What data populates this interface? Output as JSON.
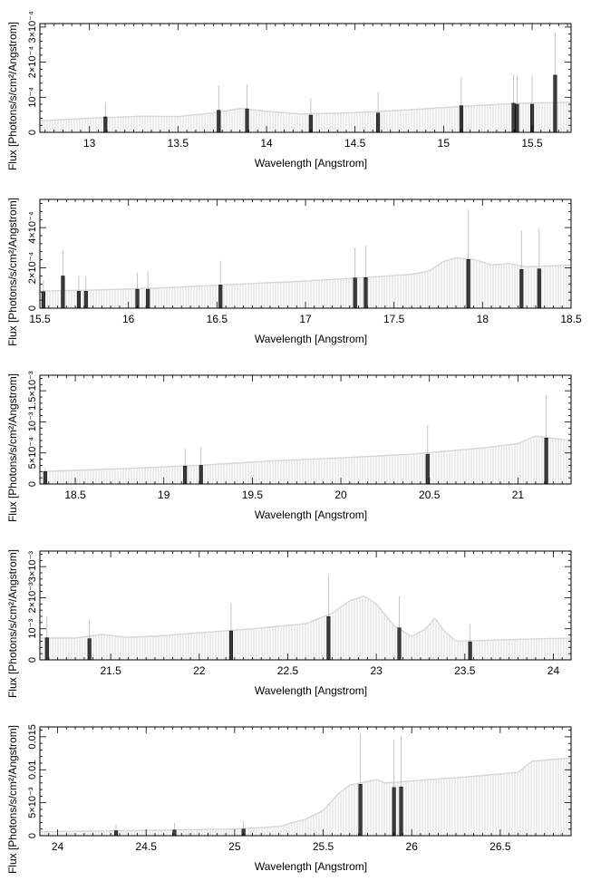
{
  "chart_data": [
    {
      "type": "bar",
      "xlabel": "Wavelength [Angstrom]",
      "ylabel": "Flux [Photons/s/cm²/Angstrom]",
      "xlim": [
        12.72,
        15.72
      ],
      "ylim": [
        0,
        0.00031
      ],
      "xticks": [
        13,
        13.5,
        14,
        14.5,
        15,
        15.5
      ],
      "xtick_labels": [
        "13",
        "13.5",
        "14",
        "14.5",
        "15",
        "15.5"
      ],
      "yticks": [
        0,
        0.0001,
        0.0002,
        0.0003
      ],
      "ytick_labels": [
        "0",
        "10⁻⁴",
        "2×10⁻⁴",
        "3×10⁻⁴"
      ],
      "continuum": {
        "x": [
          12.72,
          13.0,
          13.3,
          13.5,
          13.7,
          13.85,
          14.0,
          14.2,
          14.5,
          14.8,
          15.1,
          15.4,
          15.72
        ],
        "y": [
          3.3e-05,
          4e-05,
          4.6e-05,
          4.5e-05,
          5.5e-05,
          6.8e-05,
          6e-05,
          5.2e-05,
          5.6e-05,
          6.4e-05,
          7.4e-05,
          8.2e-05,
          8.6e-05
        ]
      },
      "lines": [
        {
          "x": 13.09,
          "y": 4.4e-05,
          "err_hi": 8.5e-05
        },
        {
          "x": 13.73,
          "y": 6.3e-05,
          "err_hi": 0.000134
        },
        {
          "x": 13.89,
          "y": 6.7e-05,
          "err_hi": 0.000137
        },
        {
          "x": 14.25,
          "y": 4.9e-05,
          "err_hi": 9.7e-05
        },
        {
          "x": 14.63,
          "y": 5.5e-05,
          "err_hi": 0.000115
        },
        {
          "x": 15.1,
          "y": 7.6e-05,
          "err_hi": 0.000158
        },
        {
          "x": 15.395,
          "y": 8.3e-05,
          "err_hi": 0.000165
        },
        {
          "x": 15.415,
          "y": 8e-05,
          "err_hi": 0.000162
        },
        {
          "x": 15.5,
          "y": 8e-05,
          "err_hi": 0.000162
        },
        {
          "x": 15.63,
          "y": 0.000163,
          "err_hi": 0.000285
        }
      ]
    },
    {
      "type": "bar",
      "xlabel": "Wavelength [Angstrom]",
      "ylabel": "Flux [Photons/s/cm²/Angstrom]",
      "xlim": [
        15.5,
        18.5
      ],
      "ylim": [
        0,
        0.00054
      ],
      "xticks": [
        15.5,
        16,
        16.5,
        17,
        17.5,
        18,
        18.5
      ],
      "xtick_labels": [
        "15.5",
        "16",
        "16.5",
        "17",
        "17.5",
        "18",
        "18.5"
      ],
      "yticks": [
        0,
        0.0002,
        0.0004
      ],
      "ytick_labels": [
        "0",
        "2×10⁻⁴",
        "4×10⁻⁴"
      ],
      "continuum": {
        "x": [
          15.5,
          15.8,
          16.0,
          16.3,
          16.6,
          17.0,
          17.3,
          17.6,
          17.7,
          17.78,
          17.85,
          17.95,
          18.05,
          18.15,
          18.25,
          18.5
        ],
        "y": [
          8.5e-05,
          9e-05,
          9.5e-05,
          0.000105,
          0.000118,
          0.000135,
          0.00015,
          0.000168,
          0.000185,
          0.000232,
          0.00025,
          0.000242,
          0.000215,
          0.000222,
          0.000205,
          0.000215
        ]
      },
      "lines": [
        {
          "x": 15.52,
          "y": 8.2e-05,
          "err_hi": 0.000135
        },
        {
          "x": 15.63,
          "y": 0.00016,
          "err_hi": 0.000285
        },
        {
          "x": 15.72,
          "y": 8.4e-05,
          "err_hi": 0.00016
        },
        {
          "x": 15.76,
          "y": 8.4e-05,
          "err_hi": 0.00016
        },
        {
          "x": 16.05,
          "y": 9.4e-05,
          "err_hi": 0.000177
        },
        {
          "x": 16.11,
          "y": 9.4e-05,
          "err_hi": 0.000184
        },
        {
          "x": 16.52,
          "y": 0.000115,
          "err_hi": 0.000235
        },
        {
          "x": 17.28,
          "y": 0.00015,
          "err_hi": 0.0003
        },
        {
          "x": 17.34,
          "y": 0.000152,
          "err_hi": 0.00031
        },
        {
          "x": 17.92,
          "y": 0.000242,
          "err_hi": 0.00049
        },
        {
          "x": 18.22,
          "y": 0.000192,
          "err_hi": 0.000385
        },
        {
          "x": 18.32,
          "y": 0.000195,
          "err_hi": 0.000395
        }
      ]
    },
    {
      "type": "bar",
      "xlabel": "Wavelength [Angstrom]",
      "ylabel": "Flux [Photons/s/cm²/Angstrom]",
      "xlim": [
        18.3,
        21.3
      ],
      "ylim": [
        0,
        0.00175
      ],
      "xticks": [
        18.5,
        19,
        19.5,
        20,
        20.5,
        21
      ],
      "xtick_labels": [
        "18.5",
        "19",
        "19.5",
        "20",
        "20.5",
        "21"
      ],
      "yticks": [
        0,
        0.0005,
        0.001,
        0.0015
      ],
      "ytick_labels": [
        "0",
        "5×10⁻⁴",
        "10⁻³",
        "1.5×10⁻³"
      ],
      "continuum": {
        "x": [
          18.3,
          18.8,
          19.2,
          19.6,
          20.0,
          20.4,
          20.8,
          21.0,
          21.1,
          21.3
        ],
        "y": [
          0.0002,
          0.00025,
          0.0003,
          0.00037,
          0.00042,
          0.00048,
          0.00058,
          0.00065,
          0.00077,
          0.0007
        ]
      },
      "lines": [
        {
          "x": 18.33,
          "y": 0.0002,
          "err_hi": 0.00025
        },
        {
          "x": 19.12,
          "y": 0.00029,
          "err_hi": 0.00058
        },
        {
          "x": 19.21,
          "y": 0.0003,
          "err_hi": 0.0006
        },
        {
          "x": 20.49,
          "y": 0.00048,
          "err_hi": 0.00095
        },
        {
          "x": 21.16,
          "y": 0.00074,
          "err_hi": 0.00143
        }
      ]
    },
    {
      "type": "bar",
      "xlabel": "Wavelength [Angstrom]",
      "ylabel": "Flux [Photons/s/cm²/Angstrom]",
      "xlim": [
        21.1,
        24.1
      ],
      "ylim": [
        0,
        0.0035
      ],
      "xticks": [
        21.5,
        22,
        22.5,
        23,
        23.5,
        24
      ],
      "xtick_labels": [
        "21.5",
        "22",
        "22.5",
        "23",
        "23.5",
        "24"
      ],
      "yticks": [
        0,
        0.001,
        0.002,
        0.003
      ],
      "ytick_labels": [
        "0",
        "10⁻³",
        "2×10⁻³",
        "3×10⁻³"
      ],
      "continuum": {
        "x": [
          21.1,
          21.3,
          21.45,
          21.6,
          21.8,
          22.0,
          22.3,
          22.6,
          22.75,
          22.85,
          22.93,
          23.0,
          23.1,
          23.2,
          23.28,
          23.33,
          23.38,
          23.45,
          23.6,
          23.8,
          24.1
        ],
        "y": [
          0.0007,
          0.0007,
          0.00082,
          0.00072,
          0.00078,
          0.00087,
          0.001,
          0.00116,
          0.0015,
          0.0019,
          0.00205,
          0.0018,
          0.0011,
          0.00075,
          0.001,
          0.00135,
          0.00095,
          0.0006,
          0.00062,
          0.00066,
          0.0007
        ]
      },
      "lines": [
        {
          "x": 21.14,
          "y": 0.00071,
          "err_hi": 0.0014
        },
        {
          "x": 21.38,
          "y": 0.00068,
          "err_hi": 0.0013
        },
        {
          "x": 22.18,
          "y": 0.00093,
          "err_hi": 0.00185
        },
        {
          "x": 22.73,
          "y": 0.00139,
          "err_hi": 0.00275
        },
        {
          "x": 23.13,
          "y": 0.00103,
          "err_hi": 0.00205
        },
        {
          "x": 23.53,
          "y": 0.00058,
          "err_hi": 0.00115
        }
      ]
    },
    {
      "type": "bar",
      "xlabel": "Wavelength [Angstrom]",
      "ylabel": "Flux [Photons/s/cm²/Angstrom]",
      "xlim": [
        23.9,
        26.9
      ],
      "ylim": [
        0,
        0.0165
      ],
      "xticks": [
        24,
        24.5,
        25,
        25.5,
        26,
        26.5
      ],
      "xtick_labels": [
        "24",
        "24.5",
        "25",
        "25.5",
        "26",
        "26.5"
      ],
      "yticks": [
        0,
        0.005,
        0.01,
        0.015
      ],
      "ytick_labels": [
        "0",
        "5×10⁻³",
        "0.01",
        "0.015"
      ],
      "continuum": {
        "x": [
          23.9,
          24.5,
          25.0,
          25.25,
          25.4,
          25.5,
          25.58,
          25.65,
          25.75,
          25.8,
          25.85,
          26.0,
          26.3,
          26.6,
          26.68,
          26.9
        ],
        "y": [
          0.0006,
          0.0008,
          0.001,
          0.0014,
          0.0025,
          0.0038,
          0.0062,
          0.0077,
          0.0082,
          0.0085,
          0.008,
          0.0083,
          0.0089,
          0.0096,
          0.0113,
          0.0118
        ]
      },
      "lines": [
        {
          "x": 24.33,
          "y": 0.00075,
          "err_hi": 0.0017
        },
        {
          "x": 24.66,
          "y": 0.00085,
          "err_hi": 0.0019
        },
        {
          "x": 25.05,
          "y": 0.001,
          "err_hi": 0.0022
        },
        {
          "x": 25.71,
          "y": 0.0078,
          "err_hi": 0.0155
        },
        {
          "x": 25.9,
          "y": 0.0073,
          "err_hi": 0.0146
        },
        {
          "x": 25.94,
          "y": 0.0074,
          "err_hi": 0.015
        }
      ]
    }
  ]
}
